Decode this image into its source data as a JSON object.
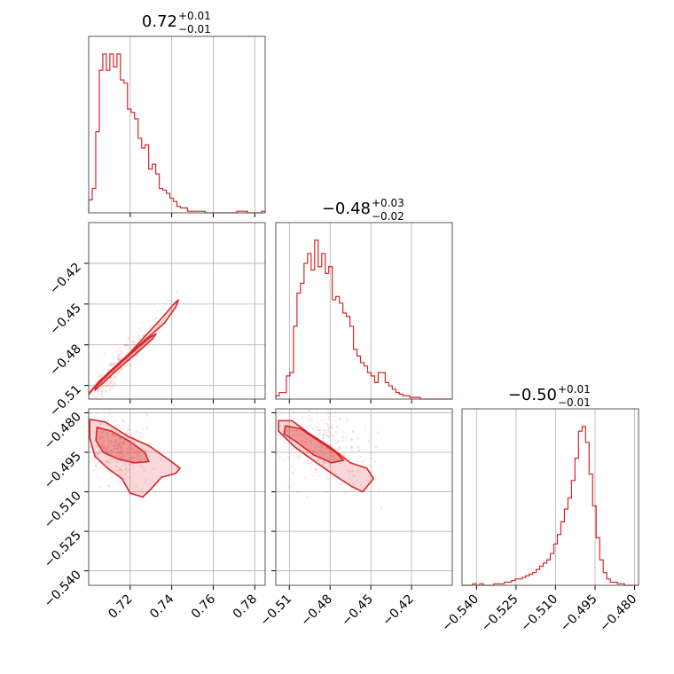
{
  "chart_data": {
    "type": "corner",
    "color": "#d62728",
    "grid": true,
    "parameters": [
      {
        "title_value": "0.72",
        "title_plus": "+0.01",
        "title_minus": "−0.01",
        "range": [
          0.7,
          0.785
        ],
        "ticks": [
          0.72,
          0.74,
          0.76,
          0.78
        ],
        "tick_labels": [
          "0.72",
          "0.74",
          "0.76",
          "0.78"
        ]
      },
      {
        "title_value": "−0.48",
        "title_plus": "+0.03",
        "title_minus": "−0.02",
        "range": [
          -0.52,
          -0.39
        ],
        "ticks": [
          -0.51,
          -0.48,
          -0.45,
          -0.42
        ],
        "tick_labels": [
          "−0.51",
          "−0.48",
          "−0.45",
          "−0.42"
        ]
      },
      {
        "title_value": "−0.50",
        "title_plus": "+0.01",
        "title_minus": "−0.01",
        "range": [
          -0.5455,
          -0.4785
        ],
        "ticks": [
          -0.54,
          -0.525,
          -0.51,
          -0.495,
          -0.48
        ],
        "tick_labels": [
          "−0.540",
          "−0.525",
          "−0.510",
          "−0.495",
          "−0.480"
        ]
      }
    ],
    "histograms": [
      {
        "param": 0,
        "bin_start": 0.7,
        "bin_width": 0.0017,
        "counts": [
          0.08,
          0.15,
          0.5,
          0.88,
          0.98,
          0.88,
          0.98,
          0.9,
          0.98,
          0.82,
          0.8,
          0.64,
          0.62,
          0.58,
          0.46,
          0.4,
          0.42,
          0.27,
          0.3,
          0.24,
          0.15,
          0.14,
          0.12,
          0.09,
          0.07,
          0.04,
          0.03,
          0.03,
          0.01,
          0.01,
          0.01,
          0.01,
          0.01,
          0.0,
          0.0,
          0.0,
          0.0,
          0.0,
          0.0,
          0.0,
          0.0,
          0.0,
          0.01,
          0.01,
          0.01,
          0.0,
          0.0,
          0.0,
          0.0,
          0.01
        ]
      },
      {
        "param": 1,
        "bin_start": -0.52,
        "bin_width": 0.0026,
        "counts": [
          0.02,
          0.04,
          0.04,
          0.14,
          0.16,
          0.44,
          0.64,
          0.7,
          0.82,
          0.88,
          0.78,
          0.96,
          0.8,
          0.88,
          0.76,
          0.8,
          0.6,
          0.62,
          0.58,
          0.52,
          0.5,
          0.44,
          0.3,
          0.26,
          0.22,
          0.2,
          0.16,
          0.14,
          0.1,
          0.16,
          0.16,
          0.1,
          0.08,
          0.06,
          0.04,
          0.03,
          0.02,
          0.02,
          0.01,
          0.01,
          0.01,
          0.0,
          0.0,
          0.0,
          0.0,
          0.0,
          0.0,
          0.0,
          0.0,
          0.0
        ]
      },
      {
        "param": 2,
        "bin_start": -0.5455,
        "bin_width": 0.00134,
        "counts": [
          0.0,
          0.0,
          0.0,
          0.01,
          0.0,
          0.01,
          0.0,
          0.0,
          0.0,
          0.01,
          0.01,
          0.01,
          0.02,
          0.02,
          0.03,
          0.04,
          0.04,
          0.05,
          0.06,
          0.07,
          0.08,
          0.1,
          0.12,
          0.14,
          0.16,
          0.2,
          0.26,
          0.32,
          0.4,
          0.48,
          0.55,
          0.66,
          0.8,
          0.97,
          1.0,
          0.9,
          0.7,
          0.5,
          0.3,
          0.16,
          0.08,
          0.04,
          0.02,
          0.02,
          0.01,
          0.01,
          0.0,
          0.0,
          0.0,
          0.0
        ]
      }
    ],
    "scatter_pairs": [
      {
        "x_param": 0,
        "y_param": 1,
        "center": [
          0.7115,
          -0.501
        ],
        "direction": [
          0.6,
          0.8
        ],
        "spread_along": 0.03,
        "spread_across": 0.0025,
        "outer_contour": [
          [
            0.7005,
            -0.515
          ],
          [
            0.705,
            -0.507
          ],
          [
            0.712,
            -0.497
          ],
          [
            0.72,
            -0.486
          ],
          [
            0.729,
            -0.474
          ],
          [
            0.7365,
            -0.464
          ],
          [
            0.742,
            -0.452
          ],
          [
            0.7432,
            -0.447
          ],
          [
            0.741,
            -0.45
          ],
          [
            0.736,
            -0.459
          ],
          [
            0.727,
            -0.474
          ],
          [
            0.718,
            -0.489
          ],
          [
            0.71,
            -0.501
          ],
          [
            0.703,
            -0.511
          ],
          [
            0.7,
            -0.5165
          ]
        ],
        "inner_contour": [
          [
            0.7035,
            -0.511
          ],
          [
            0.709,
            -0.502
          ],
          [
            0.715,
            -0.494
          ],
          [
            0.723,
            -0.483
          ],
          [
            0.73,
            -0.474
          ],
          [
            0.7325,
            -0.472
          ],
          [
            0.7305,
            -0.476
          ],
          [
            0.7225,
            -0.487
          ],
          [
            0.714,
            -0.498
          ],
          [
            0.707,
            -0.508
          ],
          [
            0.703,
            -0.5135
          ]
        ]
      },
      {
        "x_param": 0,
        "y_param": 2,
        "center": [
          0.7125,
          -0.4925
        ],
        "direction": [
          0.62,
          -0.78
        ],
        "spread_along": 0.012,
        "spread_across": 0.004,
        "outer_contour": [
          [
            0.7005,
            -0.4825
          ],
          [
            0.708,
            -0.4835
          ],
          [
            0.719,
            -0.489
          ],
          [
            0.729,
            -0.4925
          ],
          [
            0.738,
            -0.4975
          ],
          [
            0.744,
            -0.501
          ],
          [
            0.742,
            -0.503
          ],
          [
            0.735,
            -0.5045
          ],
          [
            0.73,
            -0.509
          ],
          [
            0.726,
            -0.512
          ],
          [
            0.72,
            -0.5105
          ],
          [
            0.716,
            -0.505
          ],
          [
            0.709,
            -0.501
          ],
          [
            0.703,
            -0.4965
          ],
          [
            0.7005,
            -0.4895
          ]
        ],
        "inner_contour": [
          [
            0.704,
            -0.4855
          ],
          [
            0.711,
            -0.487
          ],
          [
            0.72,
            -0.491
          ],
          [
            0.727,
            -0.495
          ],
          [
            0.729,
            -0.4985
          ],
          [
            0.722,
            -0.499
          ],
          [
            0.714,
            -0.4975
          ],
          [
            0.707,
            -0.495
          ],
          [
            0.7035,
            -0.4905
          ]
        ]
      },
      {
        "x_param": 1,
        "y_param": 2,
        "center": [
          -0.485,
          -0.4925
        ],
        "direction": [
          0.8,
          -0.6
        ],
        "spread_along": 0.022,
        "spread_across": 0.005,
        "outer_contour": [
          [
            -0.518,
            -0.483
          ],
          [
            -0.508,
            -0.483
          ],
          [
            -0.495,
            -0.488
          ],
          [
            -0.48,
            -0.493
          ],
          [
            -0.465,
            -0.499
          ],
          [
            -0.453,
            -0.501
          ],
          [
            -0.448,
            -0.505
          ],
          [
            -0.456,
            -0.51
          ],
          [
            -0.464,
            -0.508
          ],
          [
            -0.476,
            -0.504
          ],
          [
            -0.49,
            -0.499
          ],
          [
            -0.506,
            -0.493
          ],
          [
            -0.518,
            -0.487
          ]
        ],
        "inner_contour": [
          [
            -0.513,
            -0.485
          ],
          [
            -0.502,
            -0.486
          ],
          [
            -0.489,
            -0.4905
          ],
          [
            -0.476,
            -0.495
          ],
          [
            -0.47,
            -0.498
          ],
          [
            -0.479,
            -0.499
          ],
          [
            -0.492,
            -0.496
          ],
          [
            -0.505,
            -0.491
          ],
          [
            -0.514,
            -0.488
          ]
        ]
      }
    ]
  }
}
